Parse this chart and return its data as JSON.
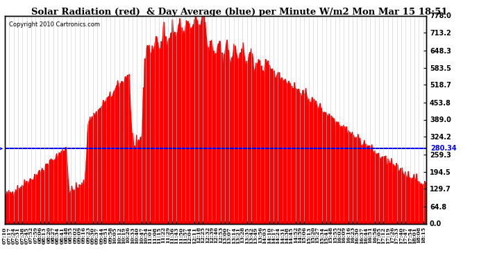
{
  "title": "Solar Radiation (red)  & Day Average (blue) per Minute W/m2 Mon Mar 15 18:51",
  "copyright": "Copyright 2010 Cartronics.com",
  "avg_value": 280.34,
  "y_max": 778.0,
  "y_min": 0.0,
  "y_ticks": [
    0.0,
    64.8,
    129.7,
    194.5,
    259.3,
    324.2,
    389.0,
    453.8,
    518.7,
    583.5,
    648.3,
    713.2,
    778.0
  ],
  "background_color": "#ffffff",
  "fill_color": "#ff0000",
  "line_color": "#0000ff",
  "grid_color": "#cccccc",
  "title_bg": "#ffffff"
}
